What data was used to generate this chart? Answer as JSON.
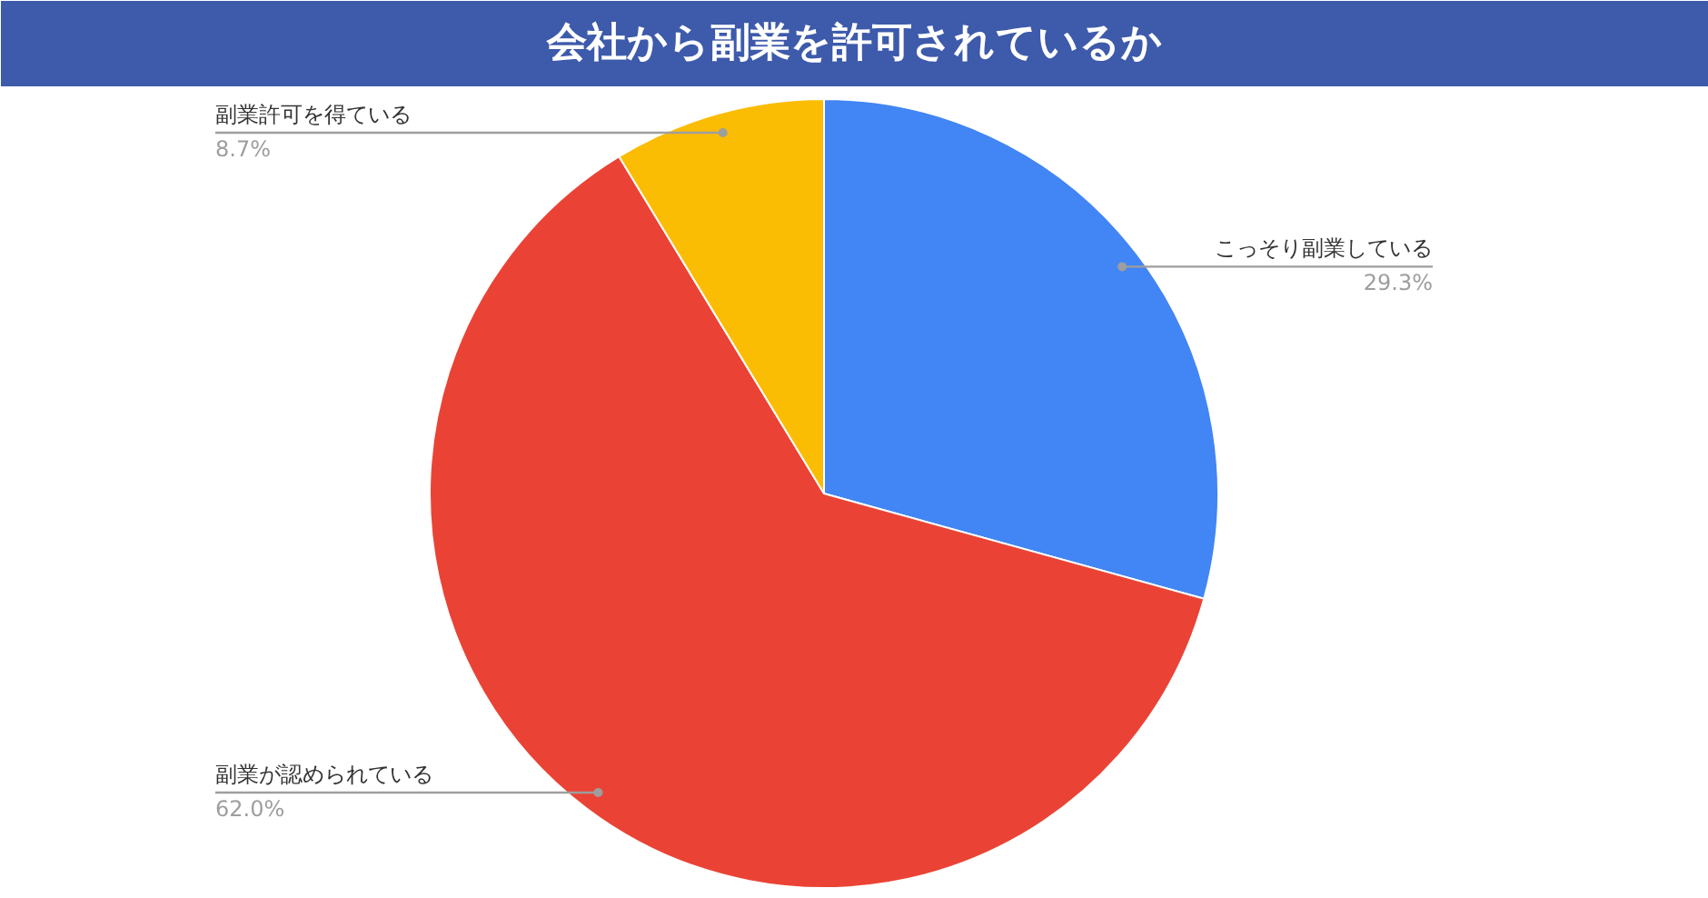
{
  "chart_data": {
    "type": "pie",
    "title": "会社から副業を許可されているか",
    "categories": [
      "こっそり副業している",
      "副業が認められている",
      "副業許可を得ている"
    ],
    "values": [
      29.3,
      62.0,
      8.7
    ],
    "colors": [
      "#4285f4",
      "#ea4335",
      "#fbbc04"
    ],
    "value_labels": [
      "29.3%",
      "62.0%",
      "8.7%"
    ]
  }
}
